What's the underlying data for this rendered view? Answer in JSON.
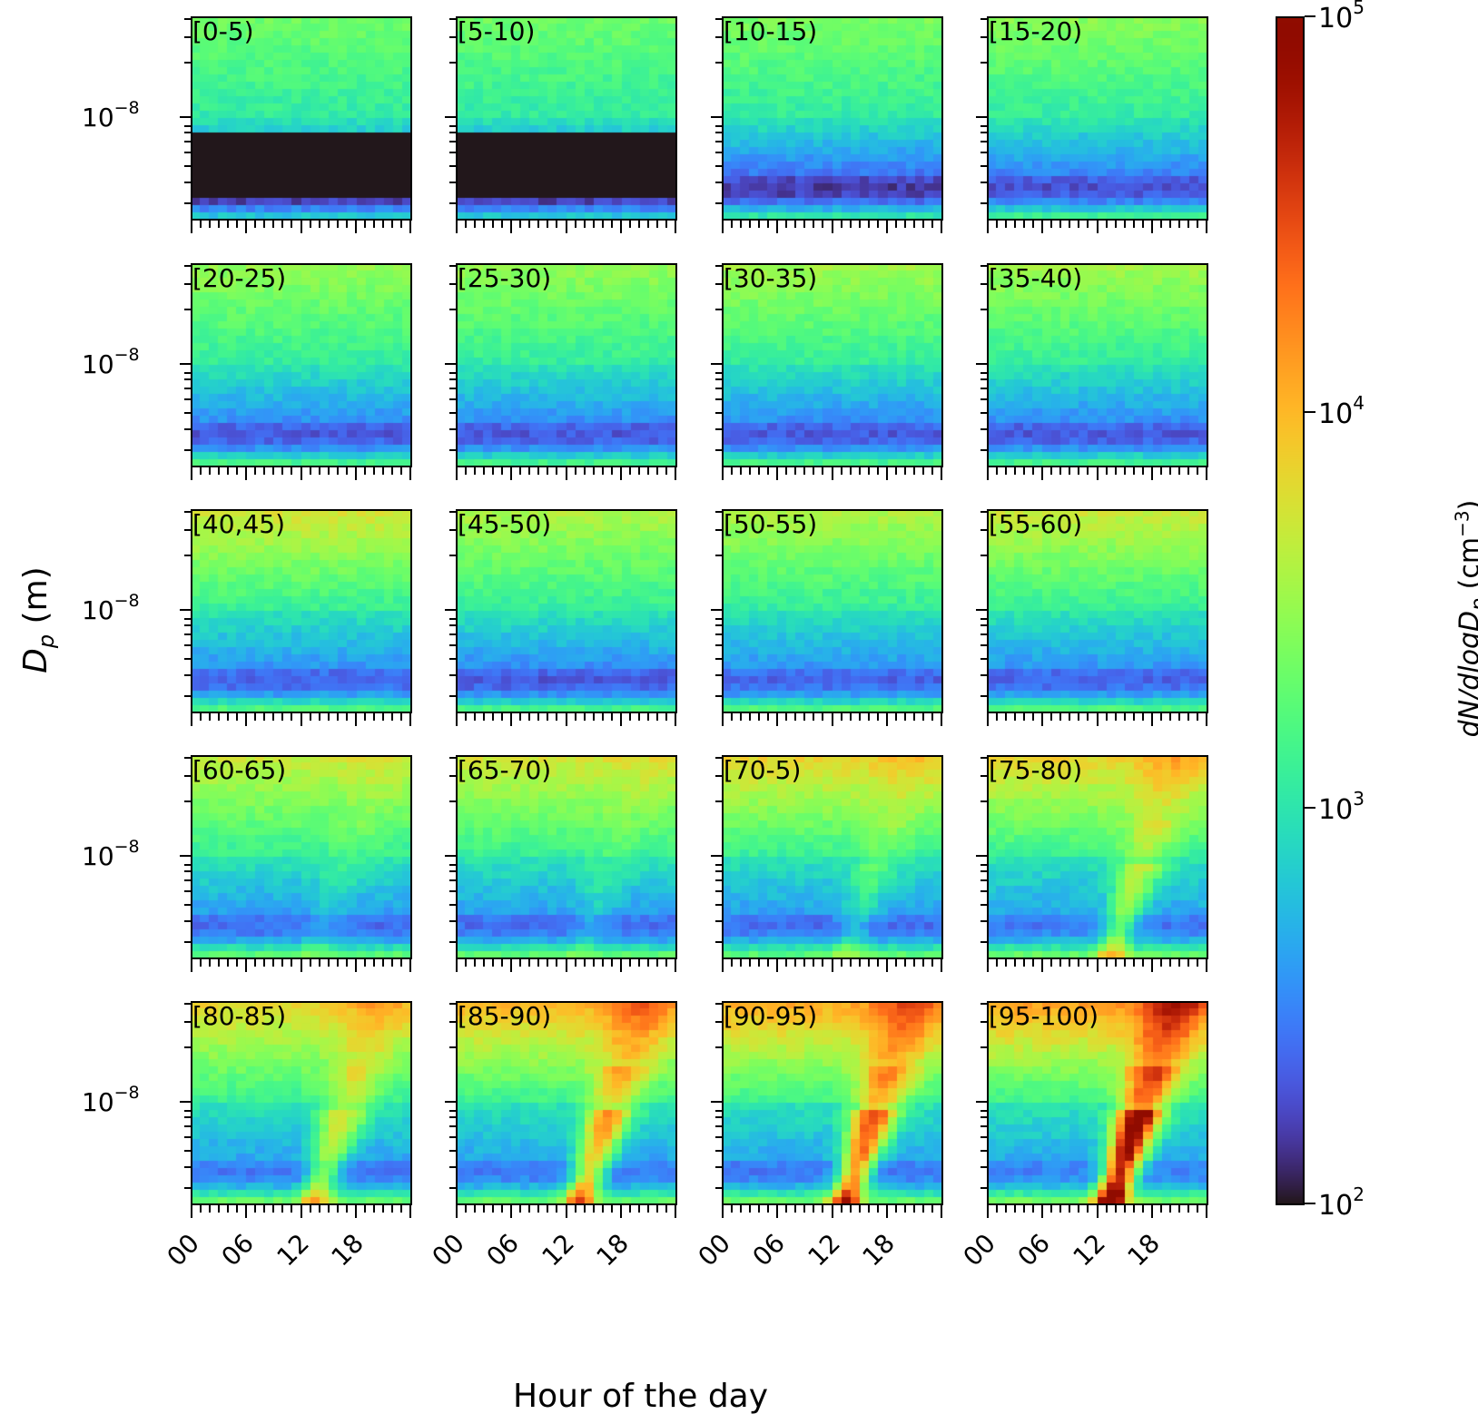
{
  "chart_data": {
    "type": "heatmap",
    "xlabel": "Hour of the day",
    "ylabel": "D_p (m)",
    "ylabel_main": "D",
    "ylabel_sub": "p",
    "ylabel_unit": "(m)",
    "x_ticks": [
      "00",
      "06",
      "12",
      "18"
    ],
    "x_range_hours": [
      0,
      24
    ],
    "y_scale": "log",
    "y_tick_label": {
      "base": "10",
      "exp": "−8"
    },
    "colorbar": {
      "scale": "log",
      "range": [
        100,
        100000
      ],
      "ticks": [
        {
          "base": "10",
          "exp": "5",
          "value": 100000
        },
        {
          "base": "10",
          "exp": "4",
          "value": 10000
        },
        {
          "base": "10",
          "exp": "3",
          "value": 1000
        },
        {
          "base": "10",
          "exp": "2",
          "value": 100
        }
      ],
      "label_main": "dN/dlogD",
      "label_sub": "p",
      "label_unit_prefix": "(cm",
      "label_unit_exp": "−3",
      "label_unit_suffix": ")",
      "colormap": "turbo"
    },
    "panels": [
      {
        "label": "[0-5)",
        "top": 3.35,
        "dark": 2.0,
        "nucleation": 0
      },
      {
        "label": "[5-10)",
        "top": 3.35,
        "dark": 2.0,
        "nucleation": 0
      },
      {
        "label": "[10-15)",
        "top": 3.4,
        "dark": 2.2,
        "nucleation": 0
      },
      {
        "label": "[15-20)",
        "top": 3.45,
        "dark": 2.3,
        "nucleation": 0
      },
      {
        "label": "[20-25)",
        "top": 3.5,
        "dark": 2.35,
        "nucleation": 0
      },
      {
        "label": "[25-30)",
        "top": 3.5,
        "dark": 2.35,
        "nucleation": 0
      },
      {
        "label": "[30-35)",
        "top": 3.55,
        "dark": 2.35,
        "nucleation": 0
      },
      {
        "label": "[35-40)",
        "top": 3.55,
        "dark": 2.35,
        "nucleation": 0
      },
      {
        "label": "[40,45)",
        "top": 3.75,
        "dark": 2.4,
        "nucleation": 0
      },
      {
        "label": "[45-50)",
        "top": 3.6,
        "dark": 2.35,
        "nucleation": 0
      },
      {
        "label": "[50-55)",
        "top": 3.6,
        "dark": 2.4,
        "nucleation": 0
      },
      {
        "label": "[55-60)",
        "top": 3.7,
        "dark": 2.4,
        "nucleation": 0
      },
      {
        "label": "[60-65)",
        "top": 3.7,
        "dark": 2.45,
        "nucleation": 0.2
      },
      {
        "label": "[65-70)",
        "top": 3.75,
        "dark": 2.45,
        "nucleation": 0.2
      },
      {
        "label": "[70-5)",
        "top": 3.85,
        "dark": 2.45,
        "nucleation": 0.35
      },
      {
        "label": "[75-80)",
        "top": 3.85,
        "dark": 2.5,
        "nucleation": 0.8
      },
      {
        "label": "[80-85)",
        "top": 3.85,
        "dark": 2.5,
        "nucleation": 0.9
      },
      {
        "label": "[85-90)",
        "top": 4.0,
        "dark": 2.5,
        "nucleation": 1.3
      },
      {
        "label": "[90-95)",
        "top": 4.05,
        "dark": 2.5,
        "nucleation": 1.6
      },
      {
        "label": "[95-100)",
        "top": 4.1,
        "dark": 2.55,
        "nucleation": 2.2
      }
    ]
  }
}
